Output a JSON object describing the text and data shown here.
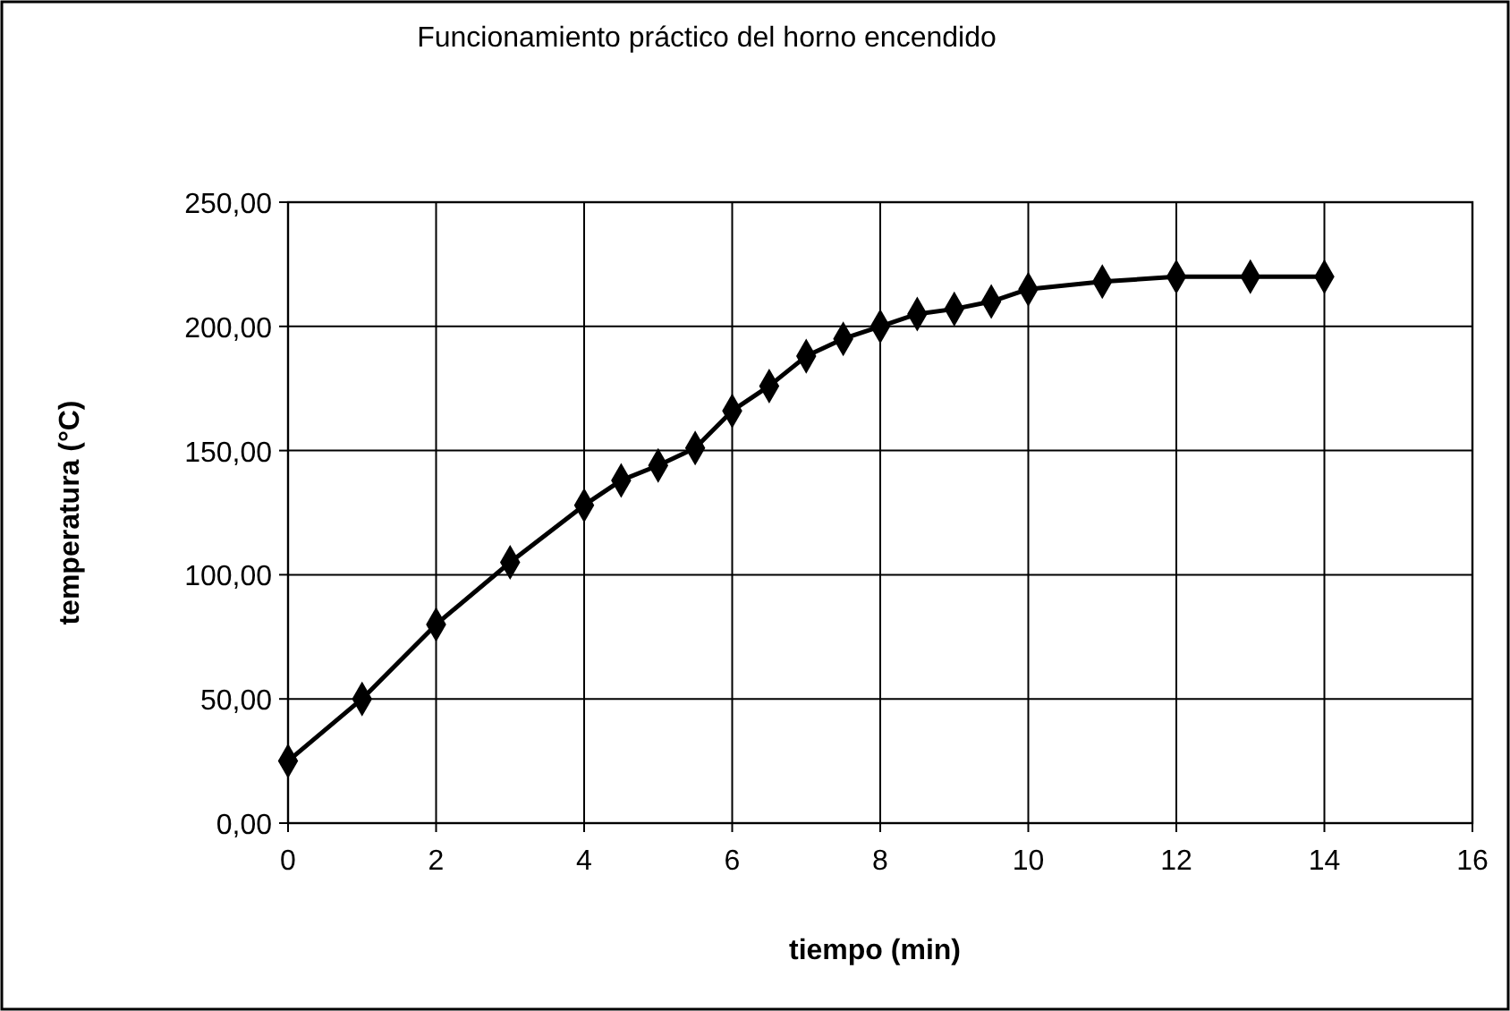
{
  "chart_data": {
    "type": "line",
    "title": "Funcionamiento práctico del horno encendido",
    "xlabel": "tiempo (min)",
    "ylabel": "temperatura (°C)",
    "x": [
      0,
      1,
      2,
      3,
      4,
      4.5,
      5,
      5.5,
      6,
      6.5,
      7,
      7.5,
      8,
      8.5,
      9,
      9.5,
      10,
      11,
      12,
      13,
      14
    ],
    "series": [
      {
        "color": "#000000",
        "values": [
          25,
          50,
          80,
          105,
          128,
          138,
          144,
          151,
          166,
          176,
          188,
          195,
          200,
          205,
          207,
          210,
          215,
          218,
          220,
          220,
          220
        ]
      }
    ],
    "xlim": [
      0,
      16
    ],
    "xticks": [
      0,
      2,
      4,
      6,
      8,
      10,
      12,
      14,
      16
    ],
    "ylim": [
      0,
      250
    ],
    "yticks": [
      {
        "value": 0,
        "label": "0,00"
      },
      {
        "value": 50,
        "label": "50,00"
      },
      {
        "value": 100,
        "label": "100,00"
      },
      {
        "value": 150,
        "label": "150,00"
      },
      {
        "value": 200,
        "label": "200,00"
      },
      {
        "value": 250,
        "label": "250,00"
      }
    ],
    "grid": true,
    "marker": "diamond",
    "line_style": "solid"
  }
}
